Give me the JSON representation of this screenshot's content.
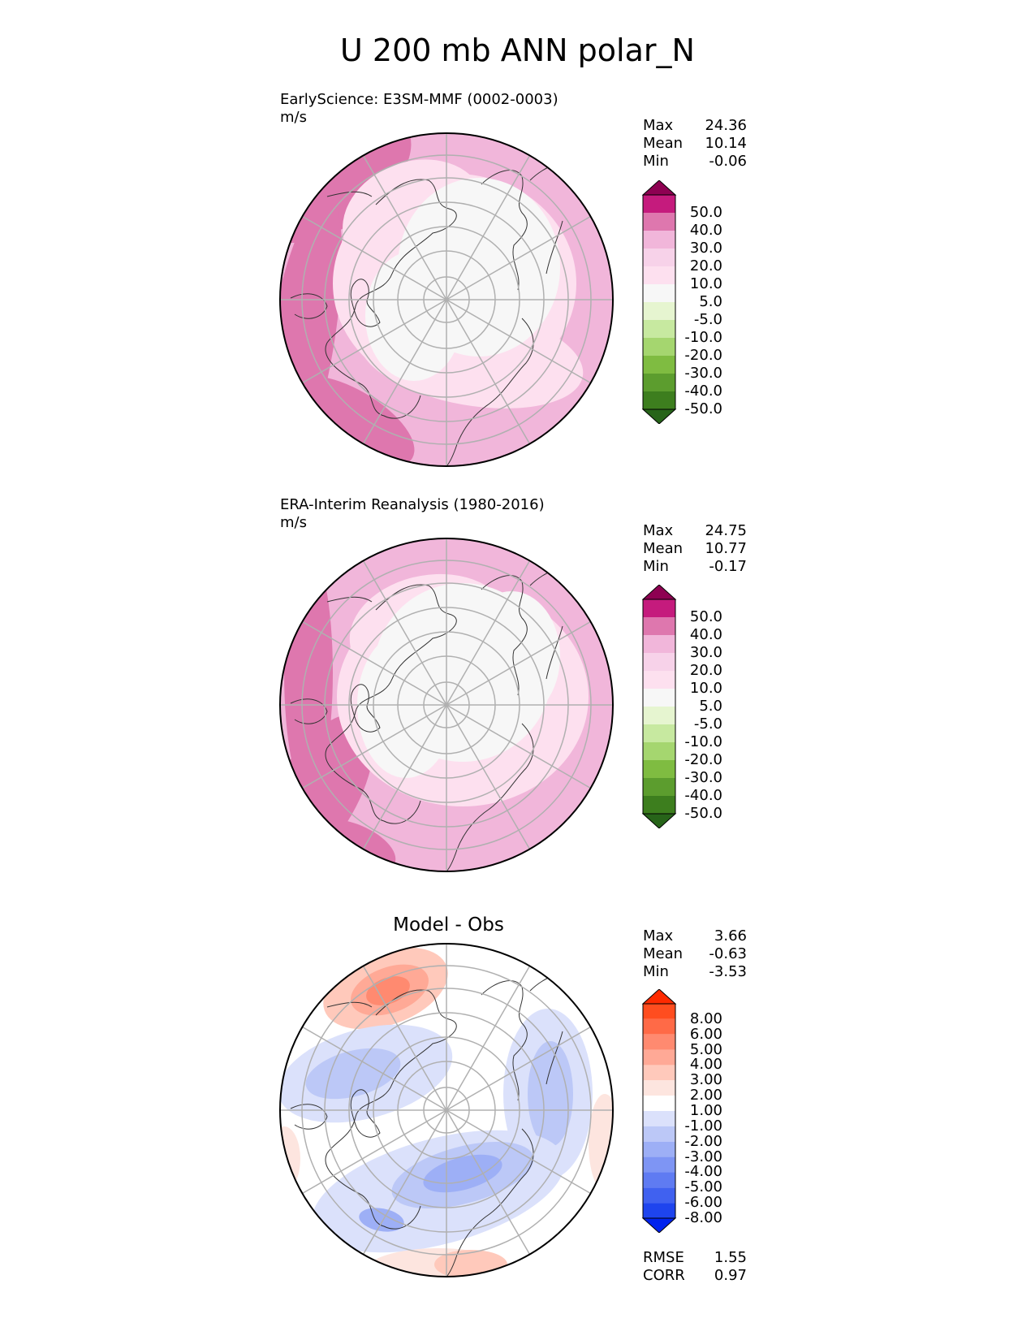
{
  "title": "U 200 mb ANN polar_N",
  "colors": {
    "pink_levels": [
      "#8e0152",
      "#c51b7d",
      "#de77ae",
      "#f1b6da",
      "#f7d2e9",
      "#fde0ef",
      "#f7f7f7",
      "#e6f5d0",
      "#c7e9a0",
      "#a5d66f",
      "#7fbc41",
      "#5c9d2e",
      "#3d7e1e",
      "#276419"
    ],
    "diff_levels": [
      "#ff2a00",
      "#ff4d1f",
      "#ff6a47",
      "#ff8a70",
      "#ffa996",
      "#ffc9bb",
      "#fde5df",
      "#ffffff",
      "#dbe1fb",
      "#bcc8f7",
      "#9daff6",
      "#7e95f4",
      "#5f7bf2",
      "#4061f0",
      "#1e44ee",
      "#0022ee"
    ],
    "grid": "#b0b0b0",
    "coast": "#333333"
  },
  "chart_data": [
    {
      "type": "polar_contour",
      "panel_id": "test",
      "title": "EarlyScience: E3SM-MMF (0002-0003)",
      "units": "m/s",
      "stats": [
        {
          "label": "Max",
          "value": "24.36"
        },
        {
          "label": "Mean",
          "value": "10.14"
        },
        {
          "label": "Min",
          "value": "-0.06"
        }
      ],
      "colorbar_ticks": [
        "50.0",
        "40.0",
        "30.0",
        "20.0",
        "10.0",
        "5.0",
        "-5.0",
        "-10.0",
        "-20.0",
        "-30.0",
        "-40.0",
        "-50.0"
      ]
    },
    {
      "type": "polar_contour",
      "panel_id": "ref",
      "title": "ERA-Interim Reanalysis (1980-2016)",
      "units": "m/s",
      "stats": [
        {
          "label": "Max",
          "value": "24.75"
        },
        {
          "label": "Mean",
          "value": "10.77"
        },
        {
          "label": "Min",
          "value": "-0.17"
        }
      ],
      "colorbar_ticks": [
        "50.0",
        "40.0",
        "30.0",
        "20.0",
        "10.0",
        "5.0",
        "-5.0",
        "-10.0",
        "-20.0",
        "-30.0",
        "-40.0",
        "-50.0"
      ]
    },
    {
      "type": "polar_contour",
      "panel_id": "diff",
      "title": "Model - Obs",
      "units": "",
      "stats": [
        {
          "label": "Max",
          "value": "3.66"
        },
        {
          "label": "Mean",
          "value": "-0.63"
        },
        {
          "label": "Min",
          "value": "-3.53"
        }
      ],
      "colorbar_ticks": [
        "8.00",
        "6.00",
        "5.00",
        "4.00",
        "3.00",
        "2.00",
        "1.00",
        "-1.00",
        "-2.00",
        "-3.00",
        "-4.00",
        "-5.00",
        "-6.00",
        "-8.00"
      ],
      "footer_stats": [
        {
          "label": "RMSE",
          "value": "1.55"
        },
        {
          "label": "CORR",
          "value": "0.97"
        }
      ]
    }
  ]
}
